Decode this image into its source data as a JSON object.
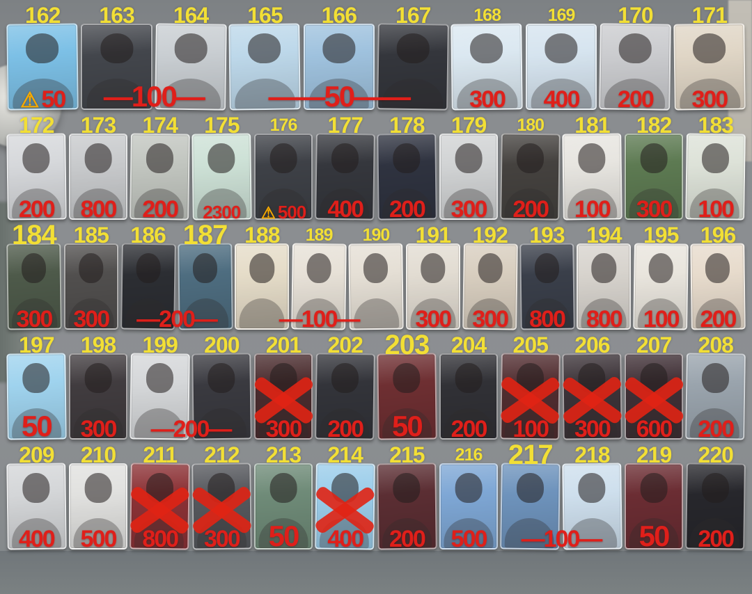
{
  "colors": {
    "label_yellow": "#f2df35",
    "price_red": "#df1f1a",
    "warning_orange": "#f6a900",
    "cross_red": "#e02414",
    "background_gray": "#8a8d90",
    "floor_gray": "#70767a"
  },
  "icons": {
    "warning": "⚠"
  },
  "rows": [
    {
      "cards": [
        {
          "num": "162",
          "tone": "#7cc0e6"
        },
        {
          "num": "163",
          "tone": "#43464c"
        },
        {
          "num": "164",
          "tone": "#c9ced2"
        },
        {
          "num": "165",
          "tone": "#bdd8ea"
        },
        {
          "num": "166",
          "tone": "#9fc2de"
        },
        {
          "num": "167",
          "tone": "#34363c"
        },
        {
          "num": "168",
          "tone": "#dbe8f1",
          "size": "sm"
        },
        {
          "num": "169",
          "tone": "#d6e4ef",
          "size": "sm"
        },
        {
          "num": "170",
          "tone": "#cbccCF"
        },
        {
          "num": "171",
          "tone": "#e0d6c6"
        }
      ],
      "prices": [
        {
          "text": "50",
          "span": 1,
          "warning": true
        },
        {
          "text": "—100—",
          "span": 2,
          "size": "lg"
        },
        {
          "text": "——50——",
          "span": 3,
          "size": "lg"
        },
        {
          "text": "300",
          "span": 1
        },
        {
          "text": "400",
          "span": 1
        },
        {
          "text": "200",
          "span": 1
        },
        {
          "text": "300",
          "span": 1
        }
      ]
    },
    {
      "cards": [
        {
          "num": "172",
          "tone": "#d6d8db"
        },
        {
          "num": "173",
          "tone": "#c8cacc"
        },
        {
          "num": "174",
          "tone": "#c2c6c0"
        },
        {
          "num": "175",
          "tone": "#cde1d6"
        },
        {
          "num": "176",
          "tone": "#3e4147",
          "size": "sm"
        },
        {
          "num": "177",
          "tone": "#35373d"
        },
        {
          "num": "178",
          "tone": "#2f3340"
        },
        {
          "num": "179",
          "tone": "#d1d3d4"
        },
        {
          "num": "180",
          "tone": "#45423f",
          "size": "sm"
        },
        {
          "num": "181",
          "tone": "#e7e5e0"
        },
        {
          "num": "182",
          "tone": "#5d7a52"
        },
        {
          "num": "183",
          "tone": "#dde2d8"
        }
      ],
      "prices": [
        {
          "text": "200",
          "span": 1
        },
        {
          "text": "800",
          "span": 1
        },
        {
          "text": "200",
          "span": 1
        },
        {
          "text": "2300",
          "span": 1,
          "size": "sm"
        },
        {
          "text": "500",
          "span": 1,
          "warning": true,
          "size": "sm"
        },
        {
          "text": "400",
          "span": 1
        },
        {
          "text": "200",
          "span": 1
        },
        {
          "text": "300",
          "span": 1
        },
        {
          "text": "200",
          "span": 1
        },
        {
          "text": "100",
          "span": 1
        },
        {
          "text": "300",
          "span": 1
        },
        {
          "text": "100",
          "span": 1
        }
      ]
    },
    {
      "cards": [
        {
          "num": "184",
          "tone": "#4e5a4a",
          "size": "lg"
        },
        {
          "num": "185",
          "tone": "#514f4e"
        },
        {
          "num": "186",
          "tone": "#2c2e33"
        },
        {
          "num": "187",
          "tone": "#4e6d80",
          "size": "lg"
        },
        {
          "num": "188",
          "tone": "#e5dcc8"
        },
        {
          "num": "189",
          "tone": "#e7e1d7",
          "size": "sm"
        },
        {
          "num": "190",
          "tone": "#e5dfd5",
          "size": "sm"
        },
        {
          "num": "191",
          "tone": "#e2dcd2"
        },
        {
          "num": "192",
          "tone": "#d8cebf"
        },
        {
          "num": "193",
          "tone": "#3a3f4a"
        },
        {
          "num": "194",
          "tone": "#d7d3cd"
        },
        {
          "num": "195",
          "tone": "#e9e5dd"
        },
        {
          "num": "196",
          "tone": "#e7dbcc"
        }
      ],
      "prices": [
        {
          "text": "300",
          "span": 1
        },
        {
          "text": "300",
          "span": 1
        },
        {
          "text": "—200—",
          "span": 2
        },
        {
          "text": "—100—",
          "span": 3
        },
        {
          "text": "300",
          "span": 1
        },
        {
          "text": "300",
          "span": 1
        },
        {
          "text": "800",
          "span": 1
        },
        {
          "text": "800",
          "span": 1
        },
        {
          "text": "100",
          "span": 1
        },
        {
          "text": "200",
          "span": 1
        }
      ]
    },
    {
      "cards": [
        {
          "num": "197",
          "tone": "#9fd3ee"
        },
        {
          "num": "198",
          "tone": "#413c3f"
        },
        {
          "num": "199",
          "tone": "#d5d7d9"
        },
        {
          "num": "200",
          "tone": "#3a3a40"
        },
        {
          "num": "201",
          "tone": "#4a2c2e",
          "crossed": true
        },
        {
          "num": "202",
          "tone": "#33343a"
        },
        {
          "num": "203",
          "tone": "#6e2f32",
          "size": "lg"
        },
        {
          "num": "204",
          "tone": "#313136"
        },
        {
          "num": "205",
          "tone": "#512d30",
          "crossed": true
        },
        {
          "num": "206",
          "tone": "#3c3338",
          "crossed": true
        },
        {
          "num": "207",
          "tone": "#403036",
          "crossed": true
        },
        {
          "num": "208",
          "tone": "#9aa4ad"
        }
      ],
      "prices": [
        {
          "text": "50",
          "span": 1,
          "size": "lg"
        },
        {
          "text": "300",
          "span": 1
        },
        {
          "text": "—200—",
          "span": 2
        },
        {
          "text": "300",
          "span": 1
        },
        {
          "text": "200",
          "span": 1
        },
        {
          "text": "50",
          "span": 1,
          "size": "lg"
        },
        {
          "text": "200",
          "span": 1
        },
        {
          "text": "100",
          "span": 1
        },
        {
          "text": "300",
          "span": 1
        },
        {
          "text": "600",
          "span": 1
        },
        {
          "text": "200",
          "span": 1
        }
      ]
    },
    {
      "cards": [
        {
          "num": "209",
          "tone": "#d4d6d8"
        },
        {
          "num": "210",
          "tone": "#e1e1df"
        },
        {
          "num": "211",
          "tone": "#8c3236",
          "crossed": true
        },
        {
          "num": "212",
          "tone": "#56585d",
          "crossed": true
        },
        {
          "num": "213",
          "tone": "#6f8b78"
        },
        {
          "num": "214",
          "tone": "#9bcdea",
          "crossed": true
        },
        {
          "num": "215",
          "tone": "#5b2e33"
        },
        {
          "num": "216",
          "tone": "#7ea7d5",
          "size": "sm"
        },
        {
          "num": "217",
          "tone": "#6e93bc",
          "size": "lg"
        },
        {
          "num": "218",
          "tone": "#cedfed"
        },
        {
          "num": "219",
          "tone": "#6b2d33"
        },
        {
          "num": "220",
          "tone": "#27272c"
        }
      ],
      "prices": [
        {
          "text": "400",
          "span": 1
        },
        {
          "text": "500",
          "span": 1
        },
        {
          "text": "800",
          "span": 1
        },
        {
          "text": "300",
          "span": 1
        },
        {
          "text": "50",
          "span": 1,
          "size": "lg"
        },
        {
          "text": "400",
          "span": 1
        },
        {
          "text": "200",
          "span": 1
        },
        {
          "text": "500",
          "span": 1
        },
        {
          "text": "—100—",
          "span": 2
        },
        {
          "text": "50",
          "span": 1,
          "size": "lg"
        },
        {
          "text": "200",
          "span": 1
        }
      ]
    }
  ]
}
